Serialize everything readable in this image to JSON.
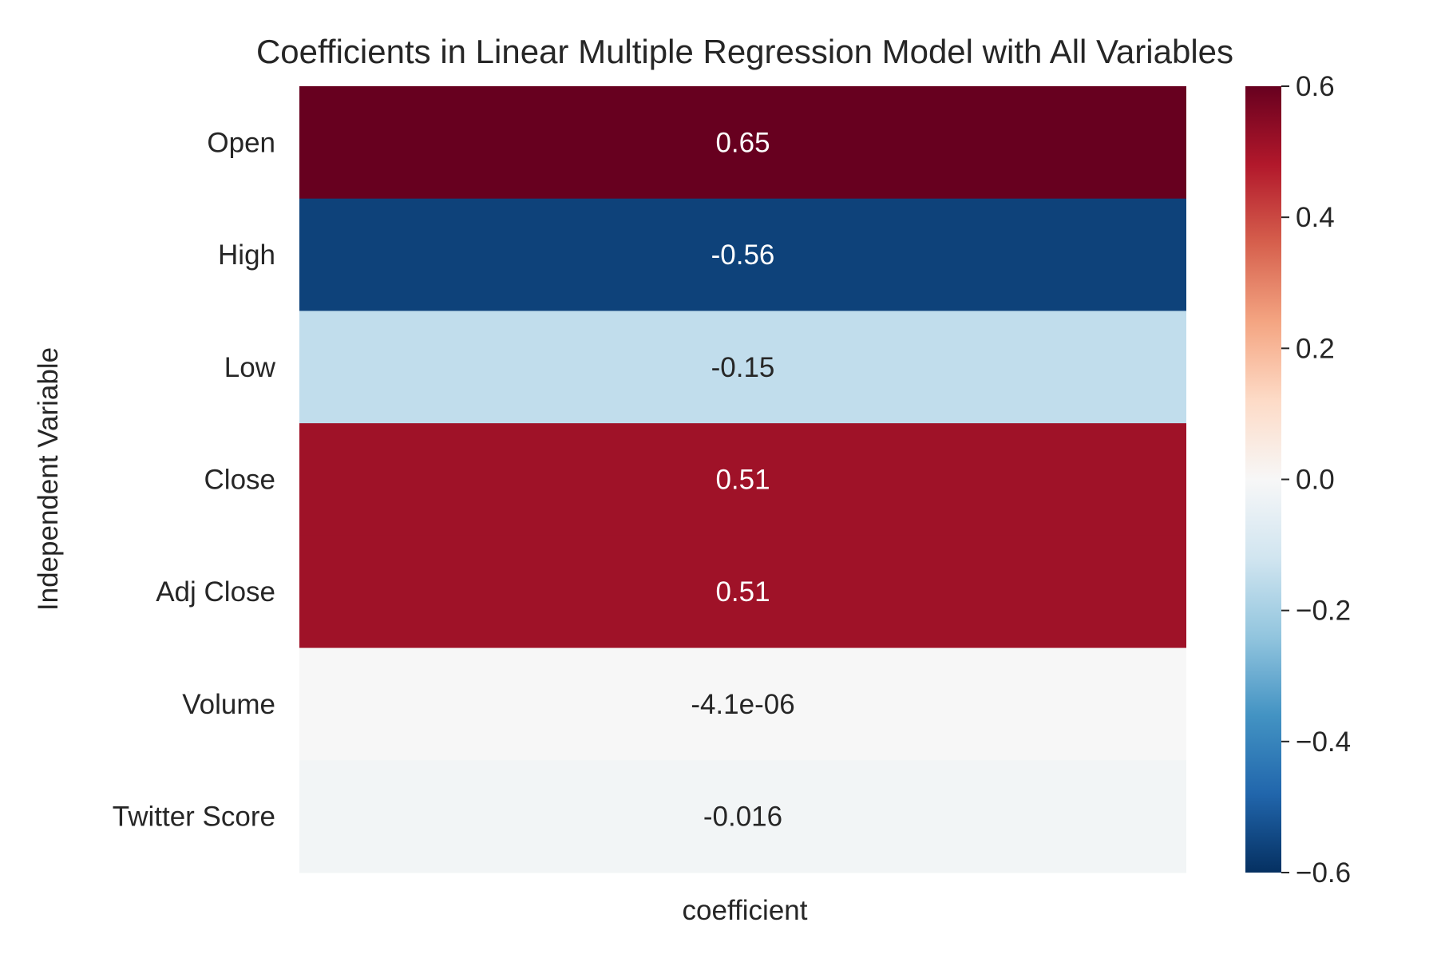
{
  "chart_data": {
    "type": "heatmap",
    "title": "Coefficients in Linear Multiple Regression Model with All Variables",
    "xlabel": "coefficient",
    "ylabel": "Independent Variable",
    "columns": [
      "coefficient"
    ],
    "rows": [
      "Open",
      "High",
      "Low",
      "Close",
      "Adj Close",
      "Volume",
      "Twitter Score"
    ],
    "values": [
      0.65,
      -0.56,
      -0.15,
      0.51,
      0.51,
      -4.1e-06,
      -0.016
    ],
    "annotations": [
      "0.65",
      "-0.56",
      "-0.15",
      "0.51",
      "0.51",
      "-4.1e-06",
      "-0.016"
    ],
    "colormap": "RdBu_r",
    "vmin": -0.6,
    "vmax": 0.6,
    "colorbar": {
      "ticks": [
        0.6,
        0.4,
        0.2,
        0.0,
        -0.2,
        -0.4,
        -0.6
      ],
      "tick_labels": [
        "0.6",
        "0.4",
        "0.2",
        "0.0",
        "−0.2",
        "−0.4",
        "−0.6"
      ]
    },
    "grid": false,
    "colors": {
      "text_dark": "#262626",
      "text_light": "#ffffff"
    }
  }
}
